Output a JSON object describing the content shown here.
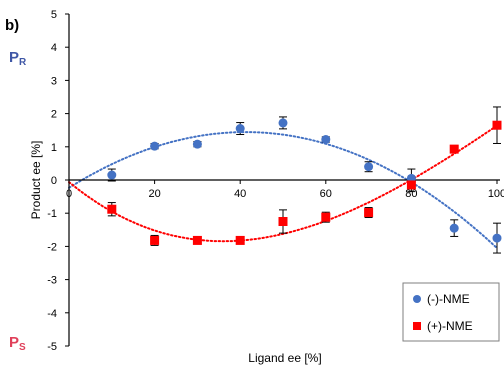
{
  "panel_label": "b)",
  "annotations": {
    "top": {
      "main": "P",
      "sub": "R",
      "color": "#3f57a6"
    },
    "bottom": {
      "main": "P",
      "sub": "S",
      "color": "#e0405a"
    }
  },
  "legend": {
    "items": [
      {
        "label": "(-)-NME",
        "color": "#4472c4",
        "marker": "circle"
      },
      {
        "label": "(+)-NME",
        "color": "#ff0000",
        "marker": "square"
      }
    ]
  },
  "chart_data": {
    "type": "scatter",
    "xlabel": "Ligand ee [%]",
    "ylabel": "Product ee [%]",
    "xlim": [
      0,
      100
    ],
    "ylim": [
      -5,
      5
    ],
    "x_ticks": [
      0,
      20,
      40,
      60,
      80,
      100
    ],
    "y_ticks": [
      -5,
      -4,
      -3,
      -2,
      -1,
      0,
      1,
      2,
      3,
      4,
      5
    ],
    "y_tick_labels": [
      "-5",
      "-4",
      "-3",
      "-2",
      "-1",
      "0",
      "1",
      "2",
      "3",
      "4",
      "5"
    ],
    "grid": false,
    "legend_position": "bottom-right",
    "series": [
      {
        "name": "(-)-NME",
        "color": "#4472c4",
        "marker": "circle",
        "x": [
          10,
          20,
          30,
          40,
          50,
          60,
          70,
          80,
          90,
          100
        ],
        "y": [
          0.15,
          1.02,
          1.08,
          1.55,
          1.72,
          1.22,
          0.4,
          0.05,
          -1.45,
          -1.75
        ],
        "err": [
          0.18,
          0.08,
          0.08,
          0.18,
          0.18,
          0.08,
          0.15,
          0.28,
          0.25,
          0.45
        ],
        "trend": "dotted"
      },
      {
        "name": "(+)-NME",
        "color": "#ff0000",
        "marker": "square",
        "x": [
          10,
          20,
          30,
          40,
          50,
          60,
          70,
          80,
          90,
          100
        ],
        "y": [
          -0.88,
          -1.82,
          -1.82,
          -1.82,
          -1.25,
          -1.12,
          -0.98,
          -0.15,
          0.93,
          1.65
        ],
        "err": [
          0.2,
          0.15,
          0.08,
          0.08,
          0.35,
          0.15,
          0.15,
          0.2,
          0.08,
          0.55
        ],
        "trend": "dotted"
      }
    ]
  }
}
